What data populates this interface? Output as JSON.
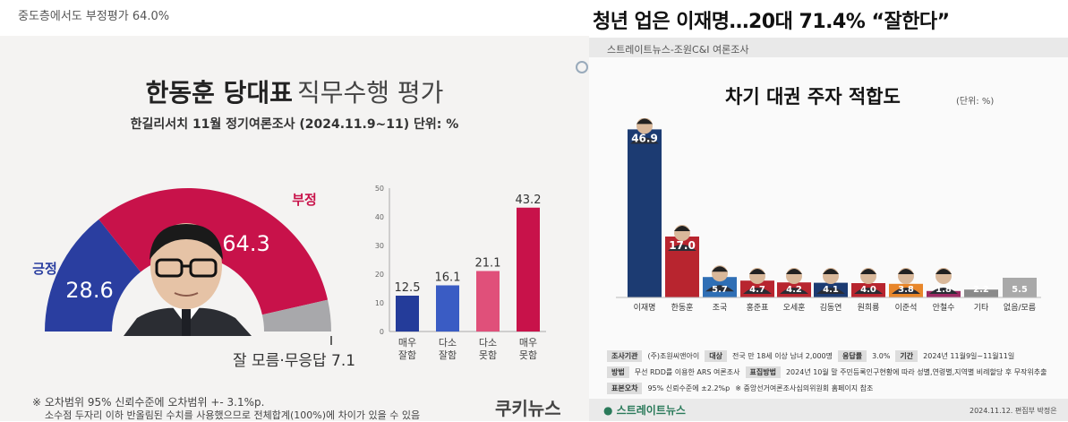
{
  "left_panel": {
    "top_caption": "중도층에서도 부정평가 64.0%",
    "title_bold": "한동훈 당대표",
    "title_light": "직무수행 평가",
    "subtitle": "한길리서치 11월 정기여론조사 (2024.11.9~11) 단위: %",
    "footnote_1": "※ 오차범위 95% 신뢰수준에 오차범위 +- 3.1%p.",
    "footnote_2": "소수점 두자리 이하 반올림된 수치를 사용했으므로 전체합계(100%)에 차이가 있을 수 있음",
    "logo": "쿠키뉴스"
  },
  "right_panel": {
    "headline": "청년 업은 이재명…20대 71.4% “잘한다”",
    "source_bar": "스트레이트뉴스-조원C&I 여론조사",
    "title": "차기 대권 주자 적합도",
    "unit": "(단위: %)",
    "info_rows": [
      [
        "조사기관",
        "(주)조원씨앤아이",
        "대상",
        "전국 만 18세 이상 남녀 2,000명",
        "응답률",
        "3.0%",
        "기간",
        "2024년 11월9일~11월11일"
      ],
      [
        "방법",
        "무선 RDD를 이용한 ARS 여론조사",
        "표집방법",
        "2024년 10월 말 주민등록인구현황에 따라 성별,연령별,지역별 비례할당 후 무작위추출"
      ],
      [
        "표본오차",
        "95% 신뢰수준에 ±2.2%p",
        "※ 중앙선거여론조사심의위원회 홈페이지 참조"
      ]
    ],
    "logo": "스트레이트뉴스",
    "date_credit": "2024.11.12. 편집부 박정은"
  },
  "chart_data": [
    {
      "type": "pie",
      "slices": [
        {
          "name": "긍정",
          "value": 28.6,
          "color": "#2a3ea0"
        },
        {
          "name": "부정",
          "value": 64.3,
          "color": "#c8124a"
        },
        {
          "name": "잘 모름·무응답",
          "value": 7.1,
          "color": "#a8a8ab"
        }
      ]
    },
    {
      "type": "bar",
      "categories": [
        "매우 잘함",
        "다소 잘함",
        "다소 못함",
        "매우 못함"
      ],
      "values": [
        12.5,
        16.1,
        21.1,
        43.2
      ],
      "colors": [
        "#243c9a",
        "#3a5cc4",
        "#e0507a",
        "#c8124a"
      ],
      "ylim": [
        0,
        50
      ],
      "yticks": [
        0,
        10,
        20,
        30,
        40,
        50
      ]
    },
    {
      "type": "bar",
      "categories": [
        "이재명",
        "한동훈",
        "조국",
        "홍준표",
        "오세훈",
        "김동연",
        "원희룡",
        "이준석",
        "안철수",
        "기타",
        "없음/모름"
      ],
      "values": [
        46.9,
        17.0,
        5.7,
        4.7,
        4.2,
        4.1,
        4.0,
        3.8,
        1.8,
        2.2,
        5.5
      ],
      "colors": [
        "#1c3b72",
        "#b8252f",
        "#2f6fb5",
        "#b8252f",
        "#b8252f",
        "#1c3b72",
        "#b8252f",
        "#e8862a",
        "#9c2a63",
        "#8a8a8a",
        "#a9a9a9"
      ],
      "ylim": [
        0,
        50
      ]
    }
  ]
}
